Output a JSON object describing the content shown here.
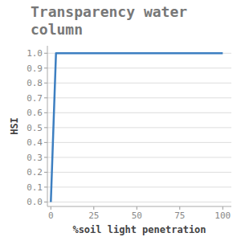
{
  "chart_data": {
    "type": "line",
    "title": "Transparency water column",
    "x_label": "%soil light penetration",
    "y_label": "HSI",
    "x": [
      0,
      3,
      100
    ],
    "values": [
      0,
      1,
      1
    ],
    "color": "#3d7fc1",
    "xlim": [
      -2,
      105
    ],
    "xticks": [
      0,
      25,
      50,
      75,
      100
    ],
    "ylim": [
      -0.03,
      1.05
    ],
    "yticks": [
      {
        "value": 0,
        "label": "0.0"
      },
      0.1,
      0.2,
      0.3,
      0.4,
      0.5,
      0.6,
      0.7,
      0.8,
      0.9,
      {
        "value": 1,
        "label": "1.0"
      }
    ],
    "grid": true
  }
}
